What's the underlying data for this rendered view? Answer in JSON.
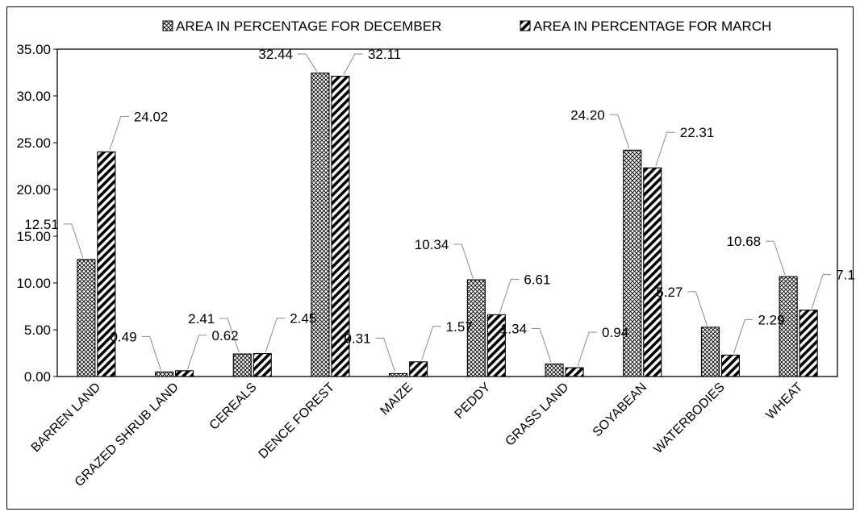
{
  "chart_data": {
    "type": "bar",
    "categories": [
      "BARREN LAND",
      "GRAZED SHRUB LAND",
      "CEREALS",
      "DENCE FOREST",
      "MAIZE",
      "PEDDY",
      "GRASS LAND",
      "SOYABEAN",
      "WATERBODIES",
      "WHEAT"
    ],
    "series": [
      {
        "name": "AREA IN PERCENTAGE FOR DECEMBER",
        "values": [
          12.51,
          0.49,
          2.41,
          32.44,
          0.31,
          10.34,
          1.34,
          24.2,
          5.27,
          10.68
        ],
        "labels": [
          "12.51",
          "0.49",
          "2.41",
          "32.44",
          "0.31",
          "10.34",
          "1.34",
          "24.20",
          "5.27",
          "10.68"
        ],
        "pattern": "crosshatch"
      },
      {
        "name": "AREA IN PERCENTAGE FOR MARCH",
        "values": [
          24.02,
          0.62,
          2.45,
          32.11,
          1.57,
          6.61,
          0.94,
          22.31,
          2.29,
          7.1
        ],
        "labels": [
          "24.02",
          "0.62",
          "2.45",
          "32.11",
          "1.57",
          "6.61",
          "0.94",
          "22.31",
          "2.29",
          "7.10"
        ],
        "pattern": "diagonal-stripes"
      }
    ],
    "y_ticks": [
      "0.00",
      "5.00",
      "10.00",
      "15.00",
      "20.00",
      "25.00",
      "30.00",
      "35.00"
    ],
    "ylim": [
      0,
      35
    ],
    "title": "",
    "xlabel": "",
    "ylabel": "",
    "grid": false,
    "legend_position": "top",
    "colors": {
      "bar_fill": "#ffffff",
      "bar_stroke": "#000000",
      "leader_line": "#8c8c8c"
    }
  }
}
